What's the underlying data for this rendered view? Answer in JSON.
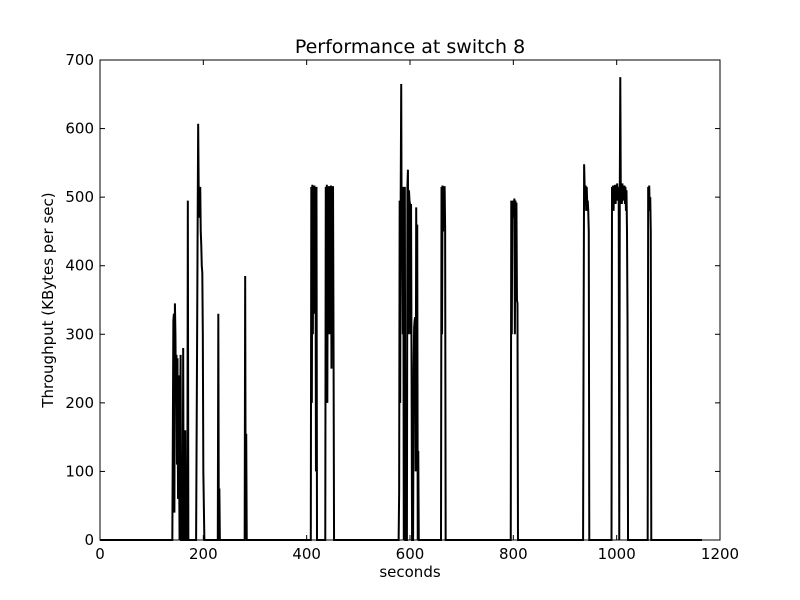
{
  "chart_data": {
    "type": "line",
    "title": "Performance at switch 8",
    "xlabel": "seconds",
    "ylabel": "Throughput (KBytes per sec)",
    "xlim": [
      0,
      1200
    ],
    "ylim": [
      0,
      700
    ],
    "xticks": [
      0,
      200,
      400,
      600,
      800,
      1000,
      1200
    ],
    "yticks": [
      0,
      100,
      200,
      300,
      400,
      500,
      600,
      700
    ],
    "grid": false,
    "series": [
      {
        "color": "#000000",
        "points": [
          [
            0,
            0
          ],
          [
            140,
            0
          ],
          [
            142,
            320
          ],
          [
            143,
            330
          ],
          [
            144,
            40
          ],
          [
            145,
            345
          ],
          [
            146,
            300
          ],
          [
            147,
            210
          ],
          [
            148,
            270
          ],
          [
            149,
            110
          ],
          [
            150,
            265
          ],
          [
            151,
            60
          ],
          [
            152,
            240
          ],
          [
            153,
            130
          ],
          [
            154,
            0
          ],
          [
            156,
            270
          ],
          [
            157,
            0
          ],
          [
            160,
            0
          ],
          [
            161,
            280
          ],
          [
            162,
            0
          ],
          [
            164,
            0
          ],
          [
            165,
            160
          ],
          [
            166,
            0
          ],
          [
            169,
            0
          ],
          [
            170,
            495
          ],
          [
            171,
            0
          ],
          [
            174,
            0
          ],
          [
            186,
            0
          ],
          [
            188,
            300
          ],
          [
            189,
            460
          ],
          [
            190,
            607
          ],
          [
            191,
            515
          ],
          [
            192,
            500
          ],
          [
            193,
            470
          ],
          [
            194,
            515
          ],
          [
            195,
            450
          ],
          [
            196,
            430
          ],
          [
            197,
            400
          ],
          [
            198,
            390
          ],
          [
            199,
            300
          ],
          [
            200,
            100
          ],
          [
            202,
            0
          ],
          [
            228,
            0
          ],
          [
            229,
            330
          ],
          [
            230,
            0
          ],
          [
            231,
            75
          ],
          [
            232,
            0
          ],
          [
            280,
            0
          ],
          [
            281,
            385
          ],
          [
            282,
            0
          ],
          [
            283,
            155
          ],
          [
            284,
            0
          ],
          [
            408,
            0
          ],
          [
            409,
            515
          ],
          [
            410,
            200
          ],
          [
            411,
            518
          ],
          [
            412,
            300
          ],
          [
            413,
            515
          ],
          [
            414,
            450
          ],
          [
            415,
            517
          ],
          [
            416,
            330
          ],
          [
            417,
            515
          ],
          [
            418,
            100
          ],
          [
            419,
            515
          ],
          [
            420,
            0
          ],
          [
            436,
            0
          ],
          [
            437,
            515
          ],
          [
            438,
            350
          ],
          [
            439,
            518
          ],
          [
            440,
            200
          ],
          [
            441,
            515
          ],
          [
            442,
            460
          ],
          [
            443,
            516
          ],
          [
            444,
            300
          ],
          [
            445,
            515
          ],
          [
            446,
            480
          ],
          [
            447,
            517
          ],
          [
            448,
            250
          ],
          [
            449,
            515
          ],
          [
            450,
            500
          ],
          [
            451,
            516
          ],
          [
            452,
            290
          ],
          [
            453,
            0
          ],
          [
            578,
            0
          ],
          [
            579,
            70
          ],
          [
            580,
            495
          ],
          [
            581,
            200
          ],
          [
            582,
            500
          ],
          [
            583,
            665
          ],
          [
            584,
            400
          ],
          [
            585,
            515
          ],
          [
            586,
            300
          ],
          [
            587,
            515
          ],
          [
            588,
            0
          ],
          [
            589,
            180
          ],
          [
            590,
            515
          ],
          [
            591,
            0
          ],
          [
            594,
            0
          ],
          [
            595,
            515
          ],
          [
            596,
            540
          ],
          [
            597,
            300
          ],
          [
            598,
            510
          ],
          [
            599,
            495
          ],
          [
            600,
            490
          ],
          [
            601,
            300
          ],
          [
            602,
            490
          ],
          [
            603,
            250
          ],
          [
            604,
            0
          ],
          [
            606,
            0
          ],
          [
            607,
            250
          ],
          [
            608,
            310
          ],
          [
            609,
            320
          ],
          [
            610,
            325
          ],
          [
            611,
            100
          ],
          [
            612,
            485
          ],
          [
            613,
            300
          ],
          [
            614,
            460
          ],
          [
            615,
            0
          ],
          [
            616,
            130
          ],
          [
            617,
            0
          ],
          [
            660,
            0
          ],
          [
            661,
            515
          ],
          [
            662,
            300
          ],
          [
            663,
            517
          ],
          [
            664,
            450
          ],
          [
            665,
            515
          ],
          [
            666,
            480
          ],
          [
            667,
            516
          ],
          [
            668,
            455
          ],
          [
            669,
            0
          ],
          [
            795,
            0
          ],
          [
            796,
            495
          ],
          [
            797,
            300
          ],
          [
            798,
            490
          ],
          [
            799,
            480
          ],
          [
            800,
            495
          ],
          [
            801,
            470
          ],
          [
            802,
            498
          ],
          [
            803,
            300
          ],
          [
            804,
            495
          ],
          [
            805,
            460
          ],
          [
            806,
            492
          ],
          [
            807,
            350
          ],
          [
            808,
            345
          ],
          [
            809,
            0
          ],
          [
            935,
            0
          ],
          [
            936,
            300
          ],
          [
            937,
            548
          ],
          [
            938,
            515
          ],
          [
            939,
            500
          ],
          [
            940,
            517
          ],
          [
            941,
            480
          ],
          [
            942,
            515
          ],
          [
            943,
            490
          ],
          [
            944,
            495
          ],
          [
            945,
            480
          ],
          [
            946,
            450
          ],
          [
            947,
            0
          ],
          [
            990,
            0
          ],
          [
            991,
            515
          ],
          [
            992,
            500
          ],
          [
            993,
            517
          ],
          [
            994,
            480
          ],
          [
            995,
            515
          ],
          [
            996,
            500
          ],
          [
            997,
            518
          ],
          [
            998,
            490
          ],
          [
            999,
            515
          ],
          [
            1000,
            500
          ],
          [
            1001,
            520
          ],
          [
            1002,
            495
          ],
          [
            1003,
            515
          ],
          [
            1004,
            490
          ],
          [
            1005,
            0
          ],
          [
            1006,
            495
          ],
          [
            1007,
            675
          ],
          [
            1008,
            505
          ],
          [
            1009,
            515
          ],
          [
            1010,
            490
          ],
          [
            1011,
            520
          ],
          [
            1012,
            500
          ],
          [
            1013,
            515
          ],
          [
            1014,
            495
          ],
          [
            1015,
            517
          ],
          [
            1016,
            490
          ],
          [
            1017,
            515
          ],
          [
            1018,
            480
          ],
          [
            1019,
            510
          ],
          [
            1020,
            450
          ],
          [
            1021,
            320
          ],
          [
            1022,
            0
          ],
          [
            1060,
            0
          ],
          [
            1061,
            515
          ],
          [
            1062,
            500
          ],
          [
            1063,
            517
          ],
          [
            1064,
            480
          ],
          [
            1065,
            500
          ],
          [
            1066,
            450
          ],
          [
            1067,
            0
          ],
          [
            1165,
            0
          ]
        ]
      }
    ]
  }
}
